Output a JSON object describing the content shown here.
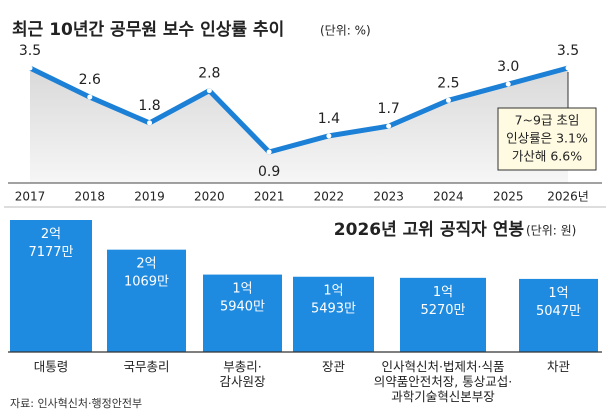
{
  "charts": [
    {
      "type": "line",
      "title": "최근 10년간 공무원 보수 인상률 추이",
      "unit": "(단위: %)",
      "categories": [
        "2017",
        "2018",
        "2019",
        "2020",
        "2021",
        "2022",
        "2023",
        "2024",
        "2025",
        "2026년"
      ],
      "values": [
        3.5,
        2.6,
        1.8,
        2.8,
        0.9,
        1.4,
        1.7,
        2.5,
        3.0,
        3.5
      ],
      "value_labels": [
        "3.5",
        "2.6",
        "1.8",
        "2.8",
        "0.9",
        "1.4",
        "1.7",
        "2.5",
        "3.0",
        "3.5"
      ],
      "color": "#1b80d6",
      "annotation": [
        "7~9급 초임",
        "인상률은 3.1%",
        "가산해 6.6%"
      ]
    },
    {
      "type": "bar",
      "title": "2026년 고위 공직자 연봉",
      "unit": "(단위: 원)",
      "categories": [
        "대통령",
        "국무총리",
        "부총리·\n감사원장",
        "장관",
        "인사혁신처·법제처·식품\n의약품안전처장, 통상교섭·\n과학기술혁신본부장",
        "차관"
      ],
      "values": [
        271770000,
        210690000,
        159400000,
        154930000,
        152700000,
        150470000
      ],
      "value_labels": [
        "2억 7177만",
        "2억 1069만",
        "1억 5940만",
        "1억 5493만",
        "1억 5270만",
        "1억 5047만"
      ],
      "color": "#1f8be0"
    }
  ],
  "source": "자료: 인사혁신처·행정안전부"
}
